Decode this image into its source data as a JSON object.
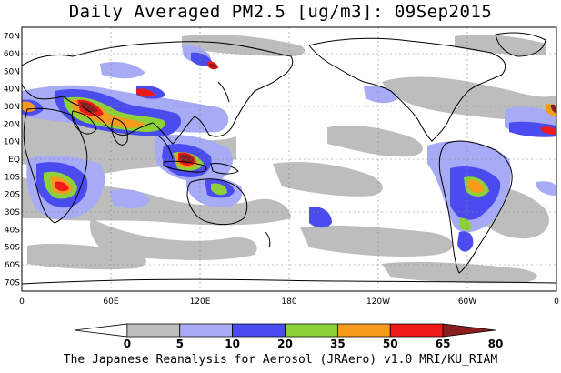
{
  "title": "Daily Averaged PM2.5 [ug/m3]: 09Sep2015",
  "footer": "The Japanese Reanalysis for Aerosol (JRAero) v1.0 MRI/KU_RIAM",
  "lat_labels": [
    "70N",
    "60N",
    "50N",
    "40N",
    "30N",
    "20N",
    "10N",
    "EQ",
    "10S",
    "20S",
    "30S",
    "40S",
    "50S",
    "60S",
    "70S"
  ],
  "lon_labels": [
    "0",
    "60E",
    "120E",
    "180",
    "120W",
    "60W",
    "0"
  ],
  "colorbar": {
    "labels": [
      "0",
      "5",
      "10",
      "20",
      "35",
      "50",
      "65",
      "80"
    ],
    "colors": [
      "#ffffff",
      "#bdbdbd",
      "#a7aaf4",
      "#4a4cf0",
      "#8dd13a",
      "#f89a1c",
      "#ee1a1a",
      "#8a1e1e"
    ]
  },
  "colors": {
    "land_outline": "#000000",
    "grid": "#888888"
  }
}
